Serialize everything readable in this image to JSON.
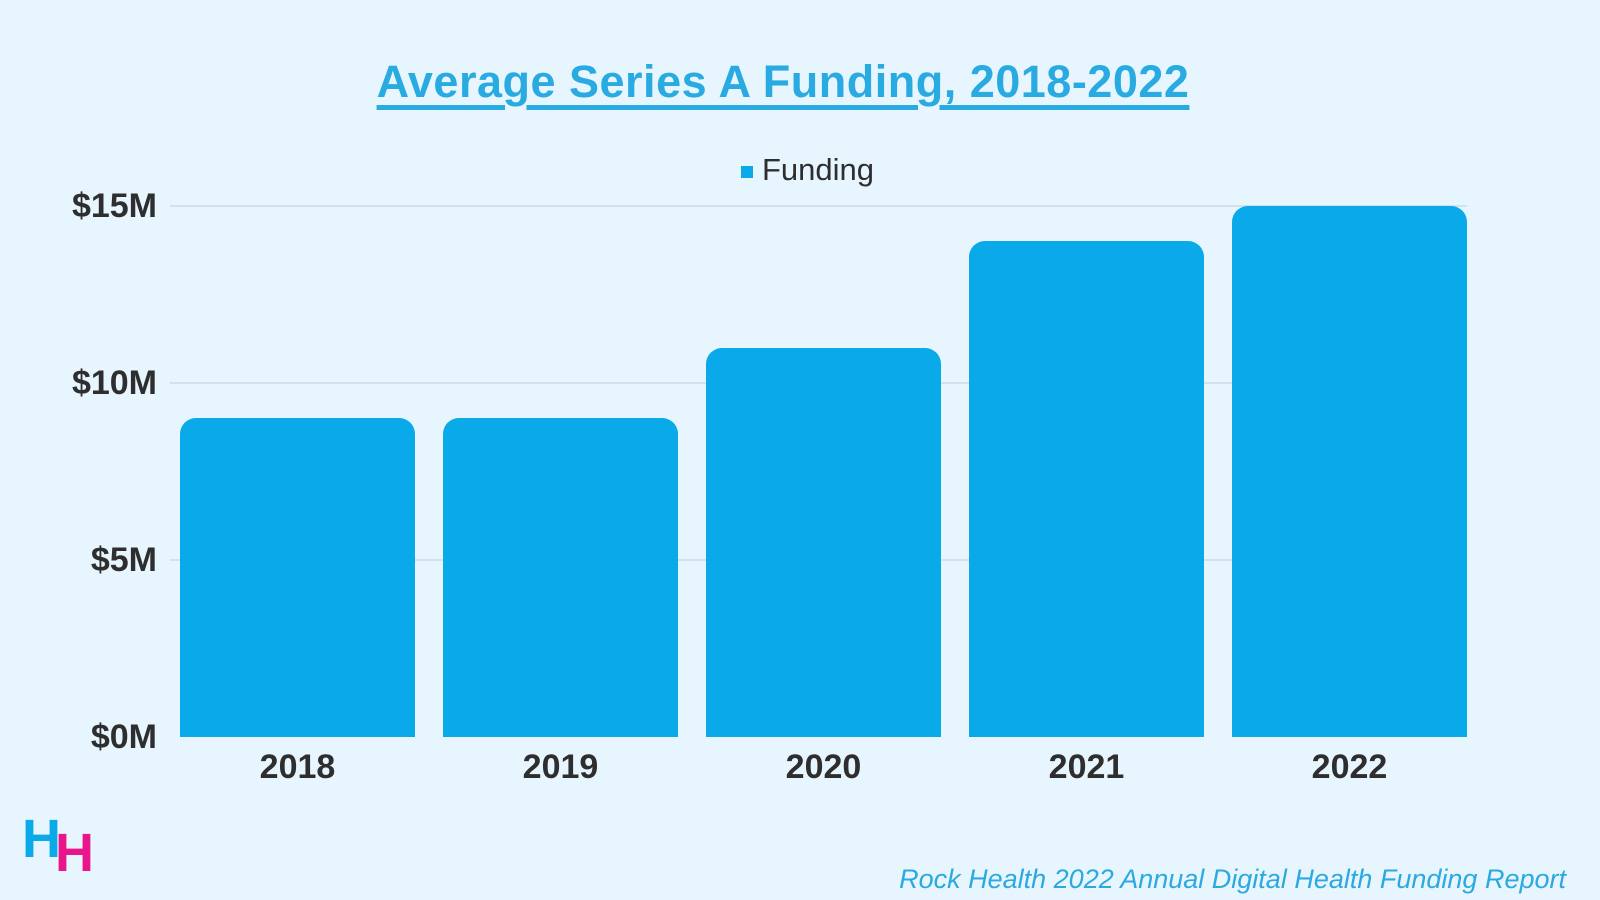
{
  "title": {
    "text": "Average Series A Funding, 2018-2022"
  },
  "legend": {
    "label": "Funding"
  },
  "source": {
    "text": "Rock Health 2022 Annual Digital Health Funding Report"
  },
  "logo": {
    "letter_blue": "H",
    "letter_pink": "H"
  },
  "colors": {
    "background": "#E7F6FE",
    "bar": "#0AA9EA",
    "title": "#29ABE2",
    "logo_pink": "#E9168B",
    "text": "#2E2E2E",
    "gridline": "#D3E2EA",
    "source_text": "#2BA9E0"
  },
  "chart_data": {
    "type": "bar",
    "title": "Average Series A Funding, 2018-2022",
    "categories": [
      "2018",
      "2019",
      "2020",
      "2021",
      "2022"
    ],
    "series": [
      {
        "name": "Funding",
        "values": [
          9,
          9,
          11,
          14,
          15
        ]
      }
    ],
    "unit": "USD millions",
    "xlabel": "",
    "ylabel": "",
    "ylim": [
      0,
      15
    ],
    "yticks": [
      {
        "value": 0,
        "label": "$0M"
      },
      {
        "value": 5,
        "label": "$5M"
      },
      {
        "value": 10,
        "label": "$10M"
      },
      {
        "value": 15,
        "label": "$15M"
      }
    ],
    "grid": true,
    "legend_position": "top-center",
    "bar_color": "#0AA9EA"
  }
}
